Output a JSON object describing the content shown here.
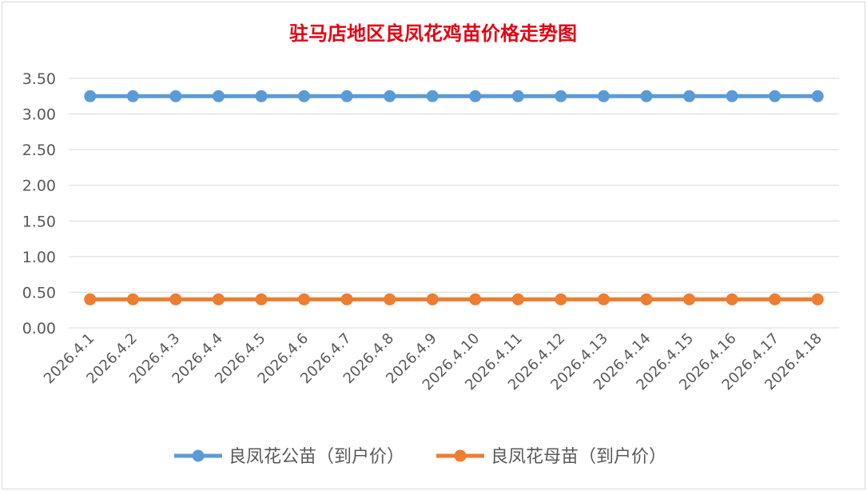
{
  "chart_data": {
    "type": "line",
    "title": "驻马店地区良凤花鸡苗价格走势图",
    "categories": [
      "2026.4.1",
      "2026.4.2",
      "2026.4.3",
      "2026.4.4",
      "2026.4.5",
      "2026.4.6",
      "2026.4.7",
      "2026.4.8",
      "2026.4.9",
      "2026.4.10",
      "2026.4.11",
      "2026.4.12",
      "2026.4.13",
      "2026.4.14",
      "2026.4.15",
      "2026.4.16",
      "2026.4.17",
      "2026.4.18"
    ],
    "ylim": [
      0,
      3.5
    ],
    "yticks": [
      "0.00",
      "0.50",
      "1.00",
      "1.50",
      "2.00",
      "2.50",
      "3.00",
      "3.50"
    ],
    "grid": true,
    "legend_position": "bottom",
    "series": [
      {
        "name": "良凤花公苗（到户价）",
        "color": "#5b9bd5",
        "values": [
          3.25,
          3.25,
          3.25,
          3.25,
          3.25,
          3.25,
          3.25,
          3.25,
          3.25,
          3.25,
          3.25,
          3.25,
          3.25,
          3.25,
          3.25,
          3.25,
          3.25,
          3.25
        ]
      },
      {
        "name": "良凤花母苗（到户价）",
        "color": "#ed7d31",
        "values": [
          0.4,
          0.4,
          0.4,
          0.4,
          0.4,
          0.4,
          0.4,
          0.4,
          0.4,
          0.4,
          0.4,
          0.4,
          0.4,
          0.4,
          0.4,
          0.4,
          0.4,
          0.4
        ]
      }
    ]
  }
}
